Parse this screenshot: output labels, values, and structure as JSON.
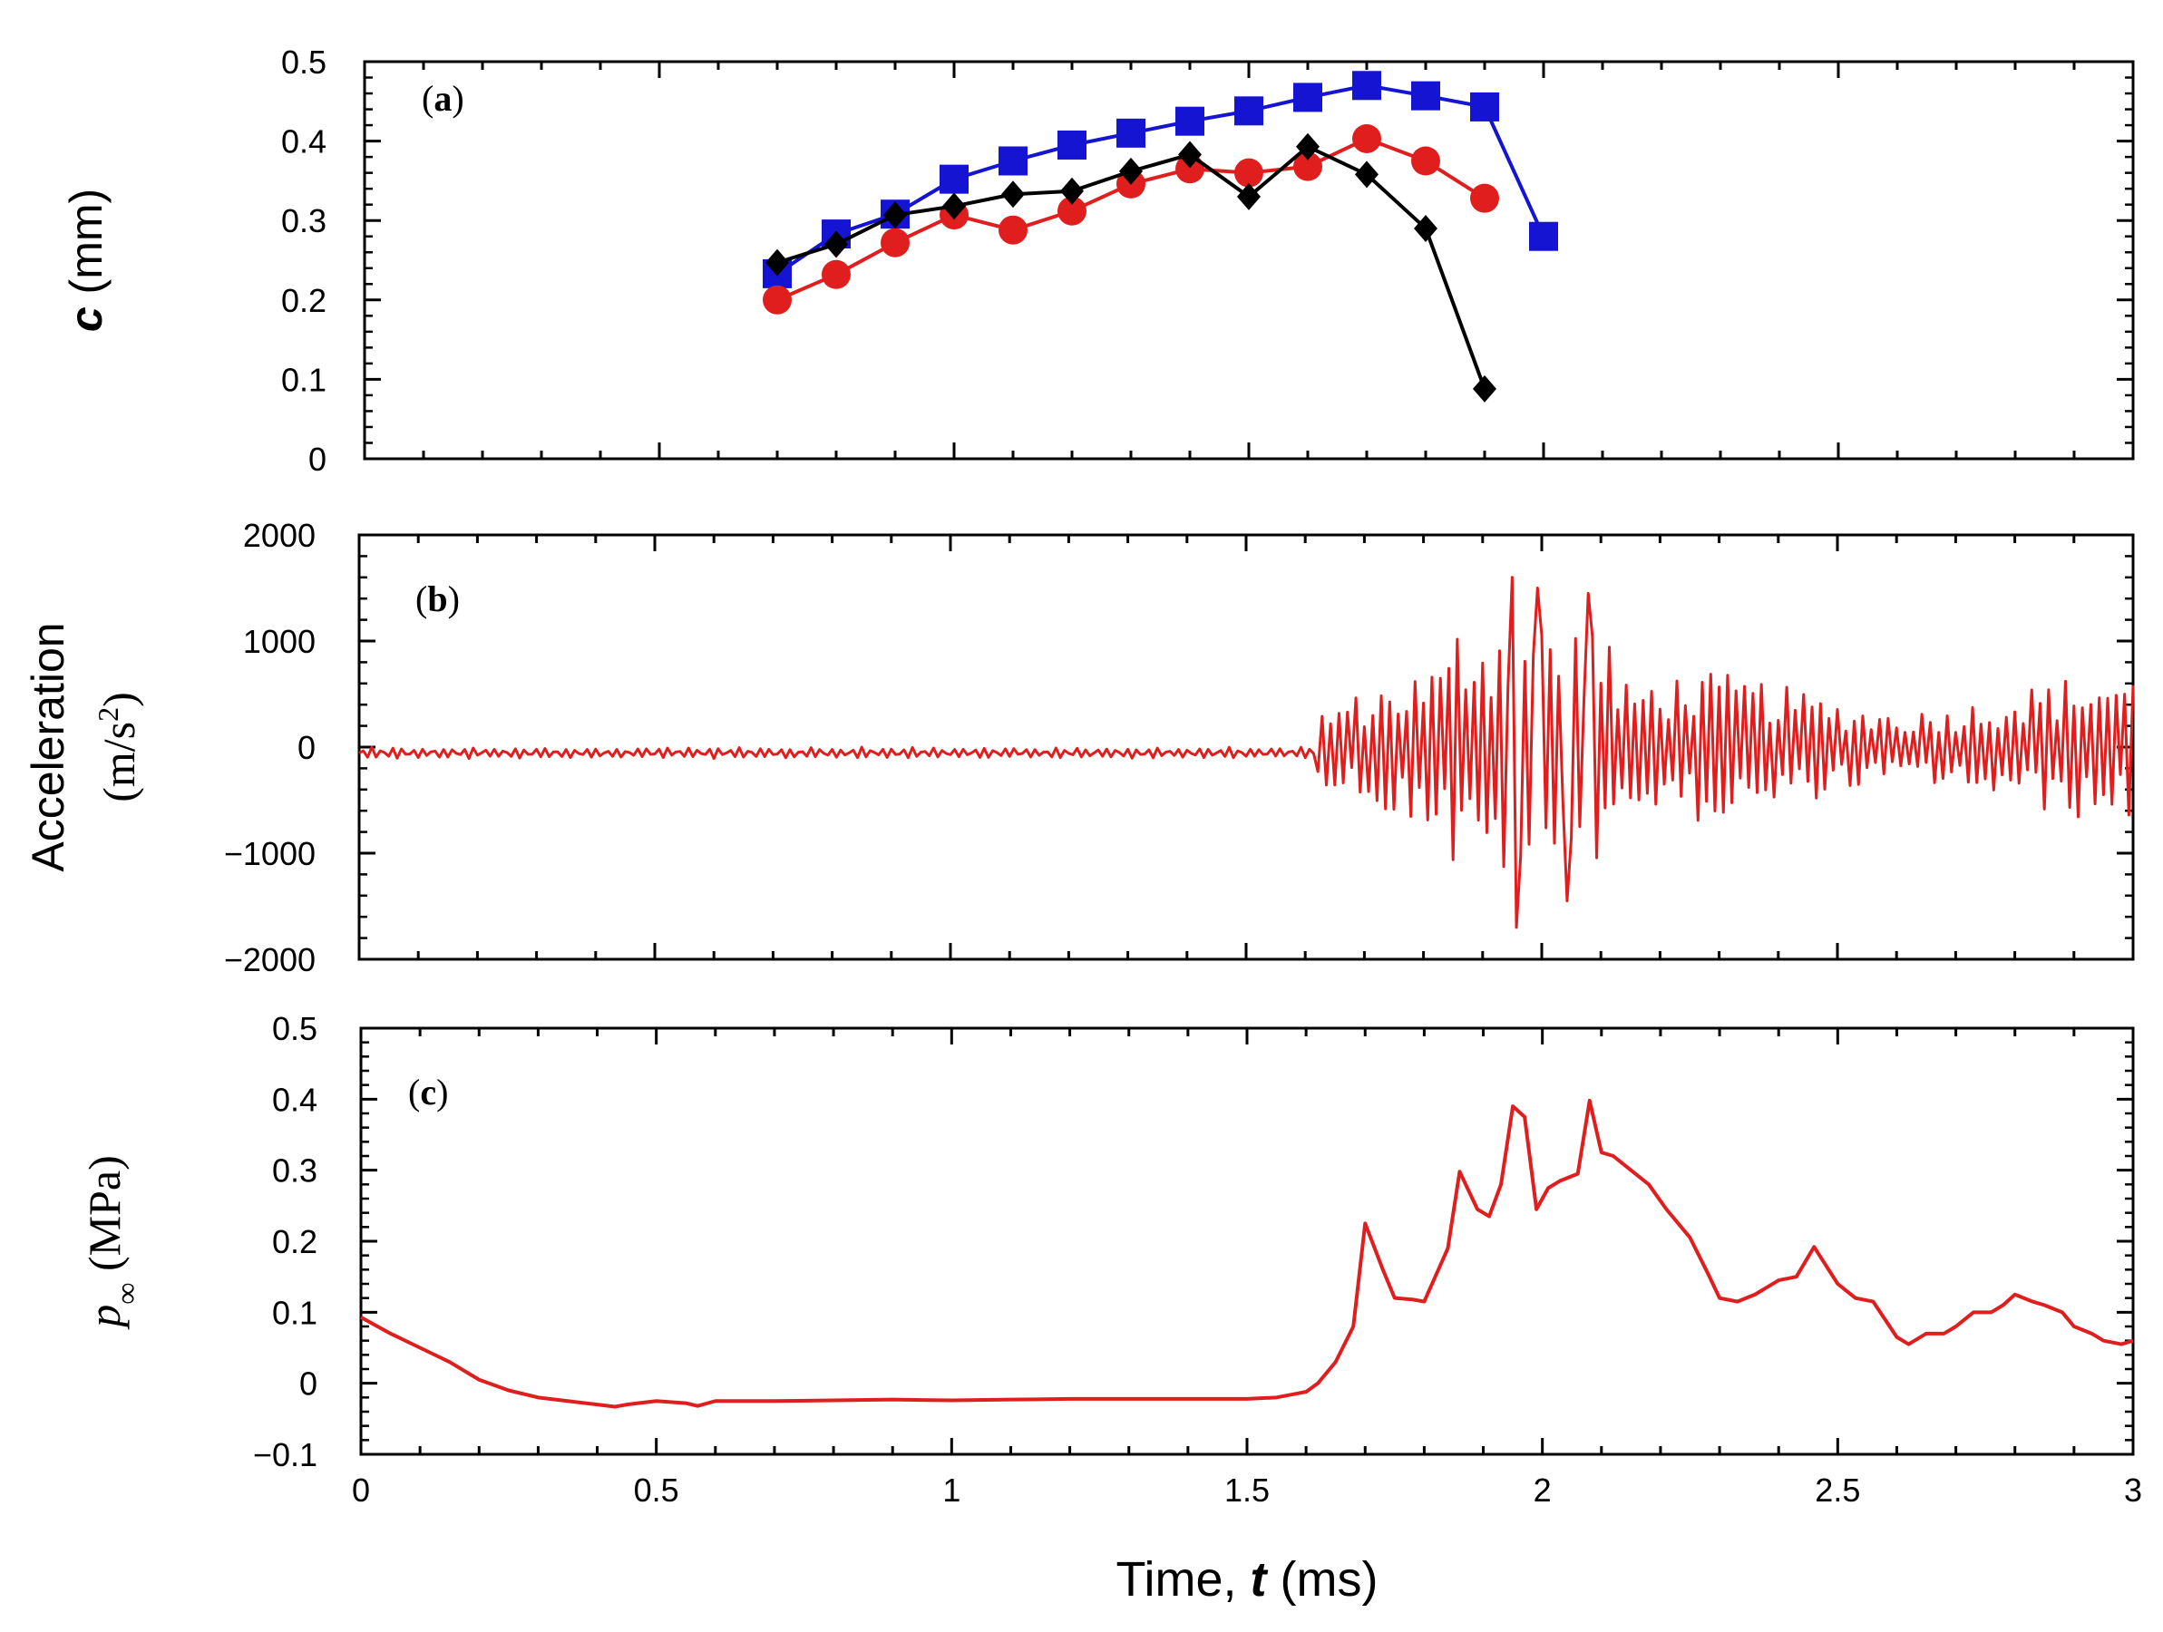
{
  "figure": {
    "xlabel_prefix": "Time, ",
    "xlabel_var": "t",
    "xlabel_suffix": " (ms)"
  },
  "chart_data": [
    {
      "id": "a",
      "type": "line",
      "panel_label_open": "(",
      "panel_label_letter": "a",
      "panel_label_close": ")",
      "ylabel_var": "c",
      "ylabel_units": " (mm)",
      "xlim": [
        0,
        3
      ],
      "ylim": [
        0,
        0.5
      ],
      "yticks": [
        "0",
        "0.1",
        "0.2",
        "0.3",
        "0.4",
        "0.5"
      ],
      "yticks_values": [
        0,
        0.1,
        0.2,
        0.3,
        0.4,
        0.5
      ],
      "series": [
        {
          "name": "blue squares",
          "color": "#1414d2",
          "marker": "square",
          "x": [
            0.7,
            0.8,
            0.9,
            1.0,
            1.1,
            1.2,
            1.3,
            1.4,
            1.5,
            1.6,
            1.7,
            1.8,
            1.9,
            2.0
          ],
          "y": [
            0.233,
            0.283,
            0.308,
            0.352,
            0.375,
            0.395,
            0.41,
            0.425,
            0.438,
            0.455,
            0.47,
            0.457,
            0.443,
            0.28
          ]
        },
        {
          "name": "red circles",
          "color": "#e01e1e",
          "marker": "circle",
          "x": [
            0.7,
            0.8,
            0.9,
            1.0,
            1.1,
            1.2,
            1.3,
            1.4,
            1.5,
            1.6,
            1.7,
            1.8,
            1.9
          ],
          "y": [
            0.2,
            0.232,
            0.272,
            0.307,
            0.288,
            0.312,
            0.346,
            0.365,
            0.36,
            0.368,
            0.403,
            0.375,
            0.328
          ]
        },
        {
          "name": "black diamonds",
          "color": "#000000",
          "marker": "diamond",
          "x": [
            0.7,
            0.8,
            0.9,
            1.0,
            1.1,
            1.2,
            1.3,
            1.4,
            1.5,
            1.6,
            1.7,
            1.8,
            1.9
          ],
          "y": [
            0.247,
            0.27,
            0.307,
            0.318,
            0.333,
            0.337,
            0.362,
            0.383,
            0.33,
            0.393,
            0.358,
            0.29,
            0.088
          ]
        }
      ]
    },
    {
      "id": "b",
      "type": "line",
      "panel_label_open": "(",
      "panel_label_letter": "b",
      "panel_label_close": ")",
      "ylabel_line1": "Acceleration",
      "ylabel_line2_prefix": "(m/s",
      "ylabel_line2_sup": "2",
      "ylabel_line2_suffix": ")",
      "xlim": [
        0,
        3
      ],
      "ylim": [
        -2000,
        2000
      ],
      "yticks": [
        "−2000",
        "−1000",
        "0",
        "1000",
        "2000"
      ],
      "yticks_values": [
        -2000,
        -1000,
        0,
        1000,
        2000
      ],
      "signal_description": "synthetic approximation of recorded acceleration; small oscillation before ~1.6 ms, large bursts peaking ~1600 m/s² near 1.9–2.1 ms",
      "series": [
        {
          "name": "acceleration",
          "color": "#e01e1e",
          "quiet_end_ms": 1.62,
          "sample_count": 420,
          "peaks": [
            {
              "x": 1.95,
              "y": 1600
            },
            {
              "x": 1.96,
              "y": -1700
            },
            {
              "x": 1.99,
              "y": 1500
            },
            {
              "x": 2.04,
              "y": -1450
            },
            {
              "x": 2.08,
              "y": 1450
            }
          ]
        }
      ]
    },
    {
      "id": "c",
      "type": "line",
      "panel_label_open": "(",
      "panel_label_letter": "c",
      "panel_label_close": ")",
      "ylabel_var": "p",
      "ylabel_sub": "∞",
      "ylabel_units": " (MPa)",
      "xlim": [
        0,
        3
      ],
      "ylim": [
        -0.1,
        0.5
      ],
      "yticks": [
        "−0.1",
        "0",
        "0.1",
        "0.2",
        "0.3",
        "0.4",
        "0.5"
      ],
      "yticks_values": [
        -0.1,
        0,
        0.1,
        0.2,
        0.3,
        0.4,
        0.5
      ],
      "xticks": [
        "0",
        "0.5",
        "1",
        "1.5",
        "2",
        "2.5",
        "3"
      ],
      "xticks_values": [
        0,
        0.5,
        1,
        1.5,
        2,
        2.5,
        3
      ],
      "series": [
        {
          "name": "p_infinity",
          "color": "#e01e1e",
          "x": [
            0.0,
            0.05,
            0.1,
            0.15,
            0.2,
            0.25,
            0.3,
            0.35,
            0.4,
            0.43,
            0.45,
            0.5,
            0.55,
            0.57,
            0.6,
            0.7,
            0.8,
            0.9,
            1.0,
            1.1,
            1.2,
            1.3,
            1.4,
            1.5,
            1.55,
            1.6,
            1.62,
            1.65,
            1.68,
            1.7,
            1.73,
            1.75,
            1.78,
            1.8,
            1.84,
            1.86,
            1.89,
            1.91,
            1.93,
            1.95,
            1.97,
            1.99,
            2.01,
            2.03,
            2.06,
            2.08,
            2.1,
            2.12,
            2.15,
            2.18,
            2.21,
            2.25,
            2.28,
            2.3,
            2.33,
            2.36,
            2.4,
            2.43,
            2.46,
            2.5,
            2.53,
            2.56,
            2.58,
            2.6,
            2.62,
            2.65,
            2.68,
            2.7,
            2.73,
            2.76,
            2.78,
            2.8,
            2.83,
            2.85,
            2.88,
            2.9,
            2.93,
            2.95,
            2.98,
            3.0
          ],
          "y": [
            0.093,
            0.07,
            0.05,
            0.03,
            0.005,
            -0.01,
            -0.02,
            -0.025,
            -0.03,
            -0.033,
            -0.03,
            -0.025,
            -0.028,
            -0.032,
            -0.025,
            -0.025,
            -0.024,
            -0.023,
            -0.024,
            -0.023,
            -0.022,
            -0.022,
            -0.022,
            -0.022,
            -0.02,
            -0.012,
            0.0,
            0.03,
            0.08,
            0.225,
            0.16,
            0.12,
            0.118,
            0.115,
            0.19,
            0.298,
            0.245,
            0.235,
            0.28,
            0.39,
            0.375,
            0.245,
            0.275,
            0.285,
            0.295,
            0.398,
            0.325,
            0.32,
            0.3,
            0.28,
            0.245,
            0.205,
            0.155,
            0.12,
            0.115,
            0.125,
            0.145,
            0.15,
            0.192,
            0.14,
            0.12,
            0.115,
            0.09,
            0.065,
            0.055,
            0.07,
            0.07,
            0.08,
            0.1,
            0.1,
            0.11,
            0.125,
            0.115,
            0.11,
            0.1,
            0.08,
            0.07,
            0.06,
            0.055,
            0.06
          ]
        }
      ]
    }
  ]
}
